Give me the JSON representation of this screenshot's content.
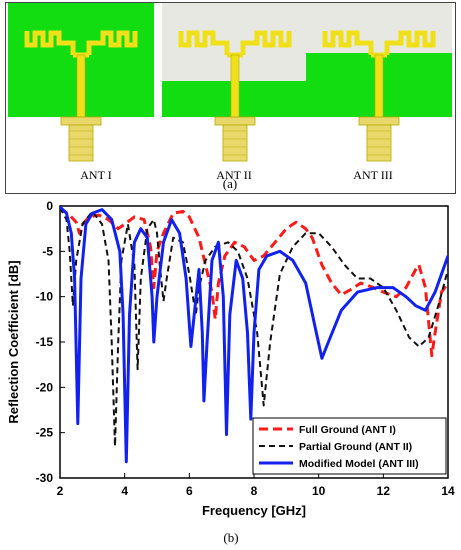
{
  "figure": {
    "antenna_labels": [
      "ANT I",
      "ANT II",
      "ANT III"
    ],
    "caption_a": "(a)",
    "caption_b": "(b)"
  },
  "colors": {
    "substrate": "#e8e8e3",
    "ground": "#11dd11",
    "patch": "#f0e01a",
    "patch_edge": "#b8a800",
    "connector": "#e8d86a"
  },
  "chart_data": {
    "type": "line",
    "xlabel": "Frequency [GHz]",
    "ylabel": "Reflection Coefficient [dB]",
    "xlim": [
      2,
      14
    ],
    "ylim": [
      -30,
      0
    ],
    "xticks": [
      2,
      4,
      6,
      8,
      10,
      12,
      14
    ],
    "yticks": [
      0,
      -5,
      -10,
      -15,
      -20,
      -25,
      -30
    ],
    "grid": false,
    "legend_position": "bottom-right",
    "series": [
      {
        "name": "Full Ground (ANT I)",
        "color": "#ff1a1a",
        "dash": "dashed-thick",
        "points": [
          [
            2.0,
            -0.2
          ],
          [
            2.3,
            -1.0
          ],
          [
            2.5,
            -1.8
          ],
          [
            2.6,
            -3.0
          ],
          [
            2.7,
            -2.0
          ],
          [
            2.9,
            -1.2
          ],
          [
            3.2,
            -1.0
          ],
          [
            3.5,
            -1.5
          ],
          [
            3.8,
            -2.5
          ],
          [
            4.0,
            -2.0
          ],
          [
            4.3,
            -1.2
          ],
          [
            4.6,
            -1.5
          ],
          [
            4.8,
            -4.5
          ],
          [
            4.9,
            -9.0
          ],
          [
            5.0,
            -5.0
          ],
          [
            5.2,
            -3.0
          ],
          [
            5.5,
            -0.8
          ],
          [
            5.8,
            -0.6
          ],
          [
            6.0,
            -1.2
          ],
          [
            6.3,
            -3.5
          ],
          [
            6.5,
            -6.5
          ],
          [
            6.7,
            -9.5
          ],
          [
            6.8,
            -12.5
          ],
          [
            6.9,
            -8.5
          ],
          [
            7.1,
            -5.5
          ],
          [
            7.4,
            -4.0
          ],
          [
            7.7,
            -4.5
          ],
          [
            8.0,
            -6.0
          ],
          [
            8.3,
            -5.5
          ],
          [
            8.7,
            -3.8
          ],
          [
            9.0,
            -2.5
          ],
          [
            9.3,
            -1.8
          ],
          [
            9.6,
            -2.5
          ],
          [
            9.8,
            -3.5
          ],
          [
            10.1,
            -6.5
          ],
          [
            10.4,
            -8.5
          ],
          [
            10.7,
            -9.8
          ],
          [
            11.0,
            -9.2
          ],
          [
            11.3,
            -8.5
          ],
          [
            11.7,
            -9.0
          ],
          [
            12.0,
            -9.5
          ],
          [
            12.4,
            -10.0
          ],
          [
            12.7,
            -9.0
          ],
          [
            13.0,
            -7.0
          ],
          [
            13.1,
            -6.5
          ],
          [
            13.3,
            -9.0
          ],
          [
            13.5,
            -16.5
          ],
          [
            13.6,
            -14.0
          ],
          [
            13.8,
            -9.5
          ],
          [
            14.0,
            -8.5
          ]
        ]
      },
      {
        "name": "Partial Ground (ANT II)",
        "color": "#111111",
        "dash": "dashed",
        "points": [
          [
            2.0,
            -0.2
          ],
          [
            2.2,
            -1.5
          ],
          [
            2.3,
            -5.0
          ],
          [
            2.4,
            -11.0
          ],
          [
            2.5,
            -6.0
          ],
          [
            2.7,
            -2.0
          ],
          [
            3.0,
            -0.6
          ],
          [
            3.3,
            -2.0
          ],
          [
            3.5,
            -6.0
          ],
          [
            3.6,
            -15.0
          ],
          [
            3.7,
            -26.5
          ],
          [
            3.8,
            -15.0
          ],
          [
            3.9,
            -6.0
          ],
          [
            4.1,
            -2.0
          ],
          [
            4.3,
            -6.5
          ],
          [
            4.4,
            -18.0
          ],
          [
            4.5,
            -8.0
          ],
          [
            4.7,
            -2.5
          ],
          [
            4.9,
            -1.5
          ],
          [
            5.0,
            -3.0
          ],
          [
            5.1,
            -7.0
          ],
          [
            5.2,
            -10.5
          ],
          [
            5.3,
            -8.0
          ],
          [
            5.5,
            -3.5
          ],
          [
            5.8,
            -4.0
          ],
          [
            6.0,
            -7.5
          ],
          [
            6.2,
            -12.0
          ],
          [
            6.3,
            -9.0
          ],
          [
            6.5,
            -6.0
          ],
          [
            6.8,
            -4.5
          ],
          [
            7.2,
            -4.0
          ],
          [
            7.5,
            -5.0
          ],
          [
            7.8,
            -8.0
          ],
          [
            8.1,
            -14.0
          ],
          [
            8.3,
            -22.0
          ],
          [
            8.5,
            -15.0
          ],
          [
            8.8,
            -7.5
          ],
          [
            9.2,
            -4.5
          ],
          [
            9.6,
            -3.0
          ],
          [
            10.0,
            -3.0
          ],
          [
            10.4,
            -4.5
          ],
          [
            10.8,
            -6.5
          ],
          [
            11.2,
            -8.0
          ],
          [
            11.6,
            -8.0
          ],
          [
            12.0,
            -9.0
          ],
          [
            12.4,
            -11.5
          ],
          [
            12.8,
            -14.5
          ],
          [
            13.1,
            -15.5
          ],
          [
            13.4,
            -14.5
          ],
          [
            13.7,
            -11.0
          ],
          [
            14.0,
            -7.0
          ]
        ]
      },
      {
        "name": "Modified Model (ANT III)",
        "color": "#1122ee",
        "dash": "solid",
        "points": [
          [
            2.0,
            -0.1
          ],
          [
            2.2,
            -0.8
          ],
          [
            2.35,
            -3.0
          ],
          [
            2.45,
            -8.0
          ],
          [
            2.55,
            -24.0
          ],
          [
            2.65,
            -8.0
          ],
          [
            2.8,
            -2.0
          ],
          [
            3.0,
            -0.8
          ],
          [
            3.3,
            -0.4
          ],
          [
            3.6,
            -1.5
          ],
          [
            3.85,
            -5.0
          ],
          [
            3.95,
            -12.0
          ],
          [
            4.05,
            -28.2
          ],
          [
            4.15,
            -12.0
          ],
          [
            4.3,
            -4.0
          ],
          [
            4.5,
            -2.5
          ],
          [
            4.7,
            -3.5
          ],
          [
            4.85,
            -10.0
          ],
          [
            4.9,
            -15.0
          ],
          [
            5.0,
            -10.0
          ],
          [
            5.2,
            -4.0
          ],
          [
            5.45,
            -1.5
          ],
          [
            5.7,
            -3.0
          ],
          [
            5.9,
            -8.0
          ],
          [
            6.05,
            -15.5
          ],
          [
            6.15,
            -12.0
          ],
          [
            6.3,
            -7.0
          ],
          [
            6.4,
            -14.0
          ],
          [
            6.45,
            -21.5
          ],
          [
            6.55,
            -15.0
          ],
          [
            6.7,
            -6.0
          ],
          [
            6.9,
            -4.0
          ],
          [
            7.05,
            -10.0
          ],
          [
            7.15,
            -25.2
          ],
          [
            7.25,
            -12.0
          ],
          [
            7.45,
            -6.0
          ],
          [
            7.65,
            -8.0
          ],
          [
            7.8,
            -14.0
          ],
          [
            7.9,
            -23.5
          ],
          [
            8.0,
            -14.0
          ],
          [
            8.15,
            -7.0
          ],
          [
            8.4,
            -5.5
          ],
          [
            8.8,
            -5.0
          ],
          [
            9.2,
            -6.0
          ],
          [
            9.6,
            -8.5
          ],
          [
            9.9,
            -13.5
          ],
          [
            10.1,
            -16.8
          ],
          [
            10.3,
            -15.0
          ],
          [
            10.7,
            -11.5
          ],
          [
            11.2,
            -9.5
          ],
          [
            11.8,
            -9.0
          ],
          [
            12.3,
            -9.0
          ],
          [
            12.7,
            -10.0
          ],
          [
            13.0,
            -11.0
          ],
          [
            13.3,
            -11.5
          ],
          [
            13.6,
            -9.5
          ],
          [
            14.0,
            -5.5
          ]
        ]
      }
    ]
  }
}
